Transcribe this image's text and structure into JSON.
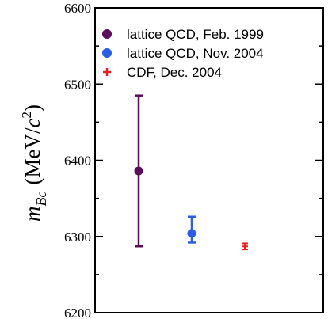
{
  "chart_data": {
    "type": "scatter",
    "title": "",
    "xlabel": "",
    "ylabel": {
      "symbol": "m",
      "subscript": "Bc",
      "unit_open": "(MeV/",
      "unit_c": "c",
      "unit_sup": "2",
      "unit_close": ")"
    },
    "ylim": [
      6200,
      6600
    ],
    "yticks": [
      6200,
      6300,
      6400,
      6500,
      6600
    ],
    "ytick_labels": [
      "6200",
      "6300",
      "6400",
      "6500",
      "6600"
    ],
    "grid": false,
    "legend_position": "top-left",
    "series": [
      {
        "name": "lattice QCD, Feb. 1999",
        "color": "#5b0f5b",
        "marker": "circle",
        "x": 1,
        "y": 6386,
        "y_low": 6287,
        "y_high": 6485
      },
      {
        "name": "lattice QCD, Nov. 2004",
        "color": "#2b5ce6",
        "marker": "circle",
        "x": 2,
        "y": 6304,
        "y_low": 6292,
        "y_high": 6326
      },
      {
        "name": "CDF, Dec. 2004",
        "color": "#e62020",
        "marker": "plus",
        "x": 3,
        "y": 6287,
        "y_low": 6283,
        "y_high": 6291
      }
    ]
  }
}
